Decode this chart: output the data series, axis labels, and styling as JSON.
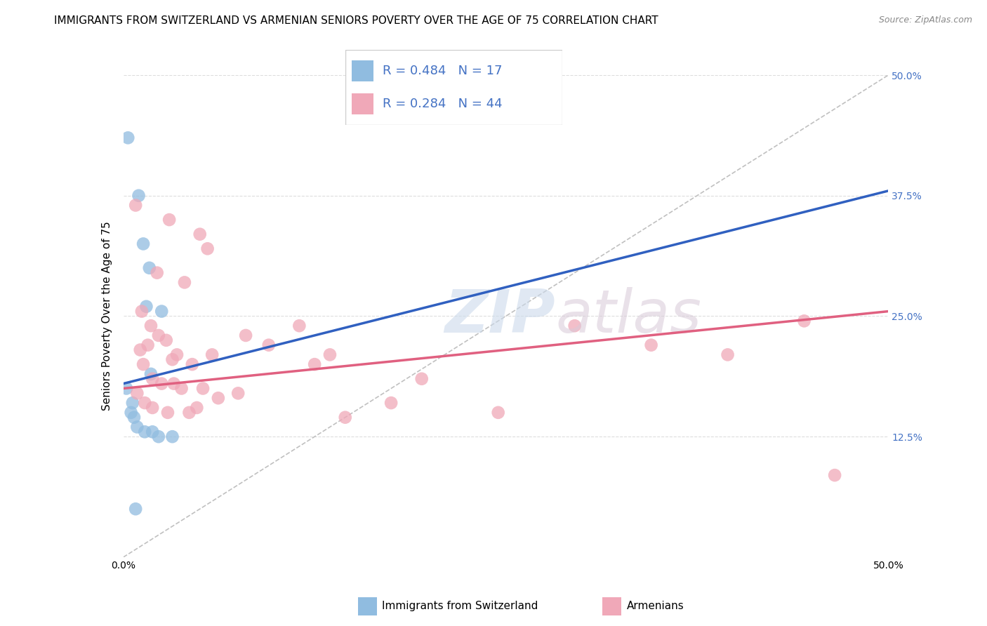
{
  "title": "IMMIGRANTS FROM SWITZERLAND VS ARMENIAN SENIORS POVERTY OVER THE AGE OF 75 CORRELATION CHART",
  "source": "Source: ZipAtlas.com",
  "ylabel": "Seniors Poverty Over the Age of 75",
  "legend_entries": [
    {
      "label": "Immigrants from Switzerland",
      "color": "#a8c8e8",
      "R": 0.484,
      "N": 17
    },
    {
      "label": "Armenians",
      "color": "#f4a8b8",
      "R": 0.284,
      "N": 44
    }
  ],
  "blue_scatter": [
    [
      0.3,
      43.5
    ],
    [
      1.0,
      37.5
    ],
    [
      1.3,
      32.5
    ],
    [
      1.7,
      30.0
    ],
    [
      1.5,
      26.0
    ],
    [
      2.5,
      25.5
    ],
    [
      1.8,
      19.0
    ],
    [
      0.2,
      17.5
    ],
    [
      0.5,
      15.0
    ],
    [
      0.6,
      16.0
    ],
    [
      0.7,
      14.5
    ],
    [
      0.9,
      13.5
    ],
    [
      1.4,
      13.0
    ],
    [
      1.9,
      13.0
    ],
    [
      2.3,
      12.5
    ],
    [
      3.2,
      12.5
    ],
    [
      0.8,
      5.0
    ]
  ],
  "pink_scatter": [
    [
      0.8,
      36.5
    ],
    [
      3.0,
      35.0
    ],
    [
      5.0,
      33.5
    ],
    [
      5.5,
      32.0
    ],
    [
      2.2,
      29.5
    ],
    [
      4.0,
      28.5
    ],
    [
      1.2,
      25.5
    ],
    [
      1.8,
      24.0
    ],
    [
      2.3,
      23.0
    ],
    [
      2.8,
      22.5
    ],
    [
      1.6,
      22.0
    ],
    [
      1.1,
      21.5
    ],
    [
      3.5,
      21.0
    ],
    [
      3.2,
      20.5
    ],
    [
      1.3,
      20.0
    ],
    [
      4.5,
      20.0
    ],
    [
      5.8,
      21.0
    ],
    [
      1.9,
      18.5
    ],
    [
      2.5,
      18.0
    ],
    [
      3.3,
      18.0
    ],
    [
      3.8,
      17.5
    ],
    [
      5.2,
      17.5
    ],
    [
      0.9,
      17.0
    ],
    [
      6.2,
      16.5
    ],
    [
      7.5,
      17.0
    ],
    [
      1.4,
      16.0
    ],
    [
      1.9,
      15.5
    ],
    [
      2.9,
      15.0
    ],
    [
      4.3,
      15.0
    ],
    [
      4.8,
      15.5
    ],
    [
      8.0,
      23.0
    ],
    [
      9.5,
      22.0
    ],
    [
      11.5,
      24.0
    ],
    [
      12.5,
      20.0
    ],
    [
      13.5,
      21.0
    ],
    [
      14.5,
      14.5
    ],
    [
      17.5,
      16.0
    ],
    [
      19.5,
      18.5
    ],
    [
      24.5,
      15.0
    ],
    [
      29.5,
      24.0
    ],
    [
      34.5,
      22.0
    ],
    [
      39.5,
      21.0
    ],
    [
      44.5,
      24.5
    ],
    [
      46.5,
      8.5
    ]
  ],
  "blue_line": {
    "x0": 0.0,
    "x1": 50.0,
    "y0": 18.0,
    "y1": 38.0
  },
  "pink_line": {
    "x0": 0.0,
    "x1": 50.0,
    "y0": 17.5,
    "y1": 25.5
  },
  "dashed_line": {
    "x0": 0.0,
    "x1": 50.0,
    "y0": 0.0,
    "y1": 50.0
  },
  "xmin": 0.0,
  "xmax": 50.0,
  "ymin": 0.0,
  "ymax": 50.0,
  "ytick_vals": [
    12.5,
    25.0,
    37.5,
    50.0
  ],
  "grid_color": "#dddddd",
  "blue_scatter_color": "#90bce0",
  "pink_scatter_color": "#f0a8b8",
  "blue_line_color": "#3060c0",
  "pink_line_color": "#e06080",
  "dashed_line_color": "#c0c0c0",
  "title_fontsize": 11,
  "axis_label_fontsize": 11,
  "tick_fontsize": 10,
  "right_tick_color": "#4472c4"
}
